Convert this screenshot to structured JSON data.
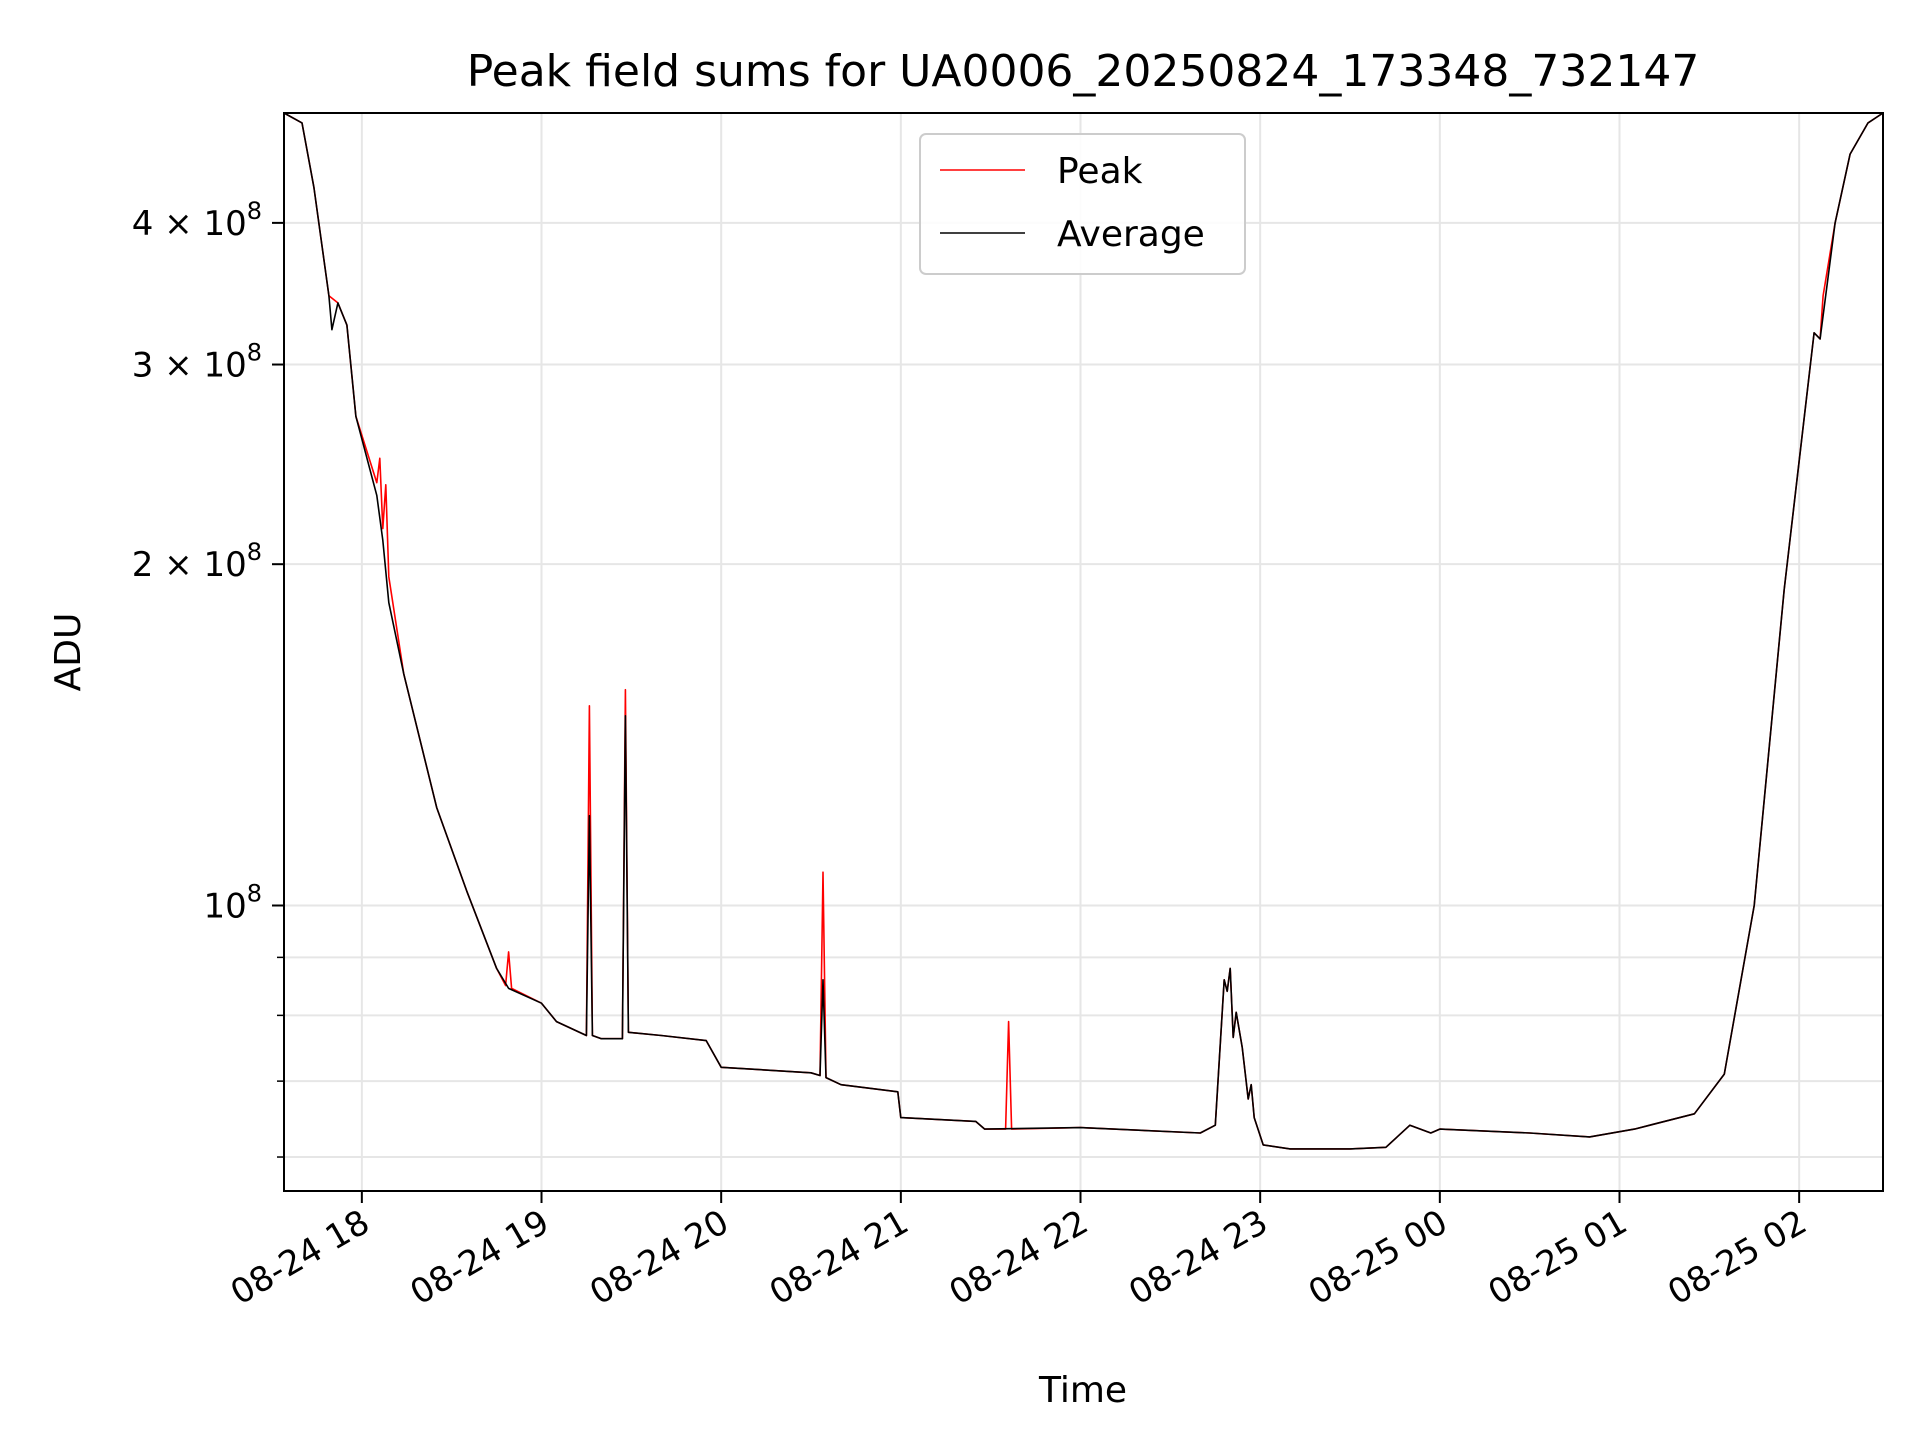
{
  "chart_data": {
    "type": "line",
    "title": "Peak field sums for UA0006_20250824_173348_732147",
    "xlabel": "Time",
    "ylabel": "ADU",
    "y_scale": "log",
    "ylim": [
      56000000,
      500000000
    ],
    "xlim": [
      "2025-08-24 17:34",
      "2025-08-25 02:28"
    ],
    "grid": true,
    "legend": {
      "placement": "top-center",
      "entries": [
        "Peak",
        "Average"
      ]
    },
    "x_ticks": [
      {
        "value": "2025-08-24 18:00",
        "label": "08-24 18"
      },
      {
        "value": "2025-08-24 19:00",
        "label": "08-24 19"
      },
      {
        "value": "2025-08-24 20:00",
        "label": "08-24 20"
      },
      {
        "value": "2025-08-24 21:00",
        "label": "08-24 21"
      },
      {
        "value": "2025-08-24 22:00",
        "label": "08-24 22"
      },
      {
        "value": "2025-08-24 23:00",
        "label": "08-24 23"
      },
      {
        "value": "2025-08-25 00:00",
        "label": "08-25 00"
      },
      {
        "value": "2025-08-25 01:00",
        "label": "08-25 01"
      },
      {
        "value": "2025-08-25 02:00",
        "label": "08-25 02"
      }
    ],
    "y_ticks_major": [
      {
        "value": 100000000,
        "base": "10",
        "exp": "8",
        "mult": ""
      },
      {
        "value": 200000000,
        "base": "10",
        "exp": "8",
        "mult": "2 × "
      },
      {
        "value": 300000000,
        "base": "10",
        "exp": "8",
        "mult": "3 × "
      },
      {
        "value": 400000000,
        "base": "10",
        "exp": "8",
        "mult": "4 × "
      }
    ],
    "y_ticks_minor": [
      60000000,
      70000000,
      80000000,
      90000000
    ],
    "series": [
      {
        "name": "Peak",
        "color": "#ff0000",
        "points": [
          [
            "2025-08-24 17:34",
            500000000
          ],
          [
            "2025-08-24 17:40",
            490000000
          ],
          [
            "2025-08-24 17:44",
            430000000
          ],
          [
            "2025-08-24 17:49",
            345000000
          ],
          [
            "2025-08-24 17:52",
            340000000
          ],
          [
            "2025-08-24 17:55",
            325000000
          ],
          [
            "2025-08-24 17:58",
            270000000
          ],
          [
            "2025-08-24 18:05",
            236000000
          ],
          [
            "2025-08-24 18:06",
            248000000
          ],
          [
            "2025-08-24 18:07",
            215000000
          ],
          [
            "2025-08-24 18:08",
            235000000
          ],
          [
            "2025-08-24 18:09",
            195000000
          ],
          [
            "2025-08-24 18:14",
            160000000
          ],
          [
            "2025-08-24 18:25",
            122000000
          ],
          [
            "2025-08-24 18:35",
            103000000
          ],
          [
            "2025-08-24 18:45",
            88000000
          ],
          [
            "2025-08-24 18:48",
            85000000
          ],
          [
            "2025-08-24 18:49",
            91000000
          ],
          [
            "2025-08-24 18:50",
            84500000
          ],
          [
            "2025-08-24 19:00",
            82000000
          ],
          [
            "2025-08-24 19:05",
            79000000
          ],
          [
            "2025-08-24 19:15",
            76800000
          ],
          [
            "2025-08-24 19:16",
            150000000
          ],
          [
            "2025-08-24 19:17",
            76800000
          ],
          [
            "2025-08-24 19:20",
            76300000
          ],
          [
            "2025-08-24 19:27",
            76300000
          ],
          [
            "2025-08-24 19:28",
            155000000
          ],
          [
            "2025-08-24 19:29",
            77300000
          ],
          [
            "2025-08-24 19:40",
            76800000
          ],
          [
            "2025-08-24 19:55",
            76000000
          ],
          [
            "2025-08-24 20:00",
            72000000
          ],
          [
            "2025-08-24 20:30",
            71200000
          ],
          [
            "2025-08-24 20:33",
            70800000
          ],
          [
            "2025-08-24 20:34",
            107000000
          ],
          [
            "2025-08-24 20:35",
            70500000
          ],
          [
            "2025-08-24 20:40",
            69500000
          ],
          [
            "2025-08-24 20:59",
            68500000
          ],
          [
            "2025-08-24 21:00",
            65000000
          ],
          [
            "2025-08-24 21:25",
            64500000
          ],
          [
            "2025-08-24 21:28",
            63500000
          ],
          [
            "2025-08-24 21:35",
            63500000
          ],
          [
            "2025-08-24 21:36",
            79000000
          ],
          [
            "2025-08-24 21:37",
            63500000
          ],
          [
            "2025-08-24 22:00",
            63700000
          ],
          [
            "2025-08-24 22:40",
            63000000
          ],
          [
            "2025-08-24 22:45",
            64000000
          ],
          [
            "2025-08-24 22:48",
            86000000
          ],
          [
            "2025-08-24 22:49",
            84000000
          ],
          [
            "2025-08-24 22:50",
            88000000
          ],
          [
            "2025-08-24 22:51",
            76500000
          ],
          [
            "2025-08-24 22:52",
            80500000
          ],
          [
            "2025-08-24 22:54",
            75000000
          ],
          [
            "2025-08-24 22:56",
            67500000
          ],
          [
            "2025-08-24 22:57",
            69500000
          ],
          [
            "2025-08-24 22:58",
            65000000
          ],
          [
            "2025-08-24 23:01",
            61500000
          ],
          [
            "2025-08-24 23:10",
            61000000
          ],
          [
            "2025-08-24 23:30",
            61000000
          ],
          [
            "2025-08-24 23:42",
            61200000
          ],
          [
            "2025-08-24 23:50",
            64000000
          ],
          [
            "2025-08-24 23:57",
            63000000
          ],
          [
            "2025-08-25 00:00",
            63500000
          ],
          [
            "2025-08-25 00:30",
            63000000
          ],
          [
            "2025-08-25 00:50",
            62500000
          ],
          [
            "2025-08-25 01:05",
            63500000
          ],
          [
            "2025-08-25 01:25",
            65500000
          ],
          [
            "2025-08-25 01:35",
            71000000
          ],
          [
            "2025-08-25 01:45",
            100000000
          ],
          [
            "2025-08-25 01:55",
            190000000
          ],
          [
            "2025-08-25 02:05",
            320000000
          ],
          [
            "2025-08-25 02:07",
            316000000
          ],
          [
            "2025-08-25 02:08",
            345000000
          ],
          [
            "2025-08-25 02:12",
            400000000
          ],
          [
            "2025-08-25 02:17",
            460000000
          ],
          [
            "2025-08-25 02:23",
            490000000
          ],
          [
            "2025-08-25 02:28",
            500000000
          ]
        ]
      },
      {
        "name": "Average",
        "color": "#000000",
        "points": [
          [
            "2025-08-24 17:34",
            500000000
          ],
          [
            "2025-08-24 17:40",
            490000000
          ],
          [
            "2025-08-24 17:44",
            430000000
          ],
          [
            "2025-08-24 17:49",
            345000000
          ],
          [
            "2025-08-24 17:50",
            322000000
          ],
          [
            "2025-08-24 17:52",
            340000000
          ],
          [
            "2025-08-24 17:55",
            325000000
          ],
          [
            "2025-08-24 17:58",
            270000000
          ],
          [
            "2025-08-24 18:05",
            230000000
          ],
          [
            "2025-08-24 18:07",
            210000000
          ],
          [
            "2025-08-24 18:09",
            185000000
          ],
          [
            "2025-08-24 18:14",
            160000000
          ],
          [
            "2025-08-24 18:25",
            122000000
          ],
          [
            "2025-08-24 18:35",
            103000000
          ],
          [
            "2025-08-24 18:45",
            88000000
          ],
          [
            "2025-08-24 18:49",
            84500000
          ],
          [
            "2025-08-24 19:00",
            82000000
          ],
          [
            "2025-08-24 19:05",
            79000000
          ],
          [
            "2025-08-24 19:15",
            76800000
          ],
          [
            "2025-08-24 19:16",
            120000000
          ],
          [
            "2025-08-24 19:17",
            76800000
          ],
          [
            "2025-08-24 19:20",
            76300000
          ],
          [
            "2025-08-24 19:27",
            76300000
          ],
          [
            "2025-08-24 19:28",
            147000000
          ],
          [
            "2025-08-24 19:29",
            77300000
          ],
          [
            "2025-08-24 19:40",
            76800000
          ],
          [
            "2025-08-24 19:55",
            76000000
          ],
          [
            "2025-08-24 20:00",
            72000000
          ],
          [
            "2025-08-24 20:30",
            71200000
          ],
          [
            "2025-08-24 20:33",
            70800000
          ],
          [
            "2025-08-24 20:34",
            86000000
          ],
          [
            "2025-08-24 20:35",
            70500000
          ],
          [
            "2025-08-24 20:40",
            69500000
          ],
          [
            "2025-08-24 20:59",
            68500000
          ],
          [
            "2025-08-24 21:00",
            65000000
          ],
          [
            "2025-08-24 21:25",
            64500000
          ],
          [
            "2025-08-24 21:28",
            63500000
          ],
          [
            "2025-08-24 22:00",
            63700000
          ],
          [
            "2025-08-24 22:40",
            63000000
          ],
          [
            "2025-08-24 22:45",
            64000000
          ],
          [
            "2025-08-24 22:48",
            86000000
          ],
          [
            "2025-08-24 22:49",
            84000000
          ],
          [
            "2025-08-24 22:50",
            88000000
          ],
          [
            "2025-08-24 22:51",
            76500000
          ],
          [
            "2025-08-24 22:52",
            80500000
          ],
          [
            "2025-08-24 22:54",
            75000000
          ],
          [
            "2025-08-24 22:56",
            67500000
          ],
          [
            "2025-08-24 22:57",
            69500000
          ],
          [
            "2025-08-24 22:58",
            65000000
          ],
          [
            "2025-08-24 23:01",
            61500000
          ],
          [
            "2025-08-24 23:10",
            61000000
          ],
          [
            "2025-08-24 23:30",
            61000000
          ],
          [
            "2025-08-24 23:42",
            61200000
          ],
          [
            "2025-08-24 23:50",
            64000000
          ],
          [
            "2025-08-24 23:57",
            63000000
          ],
          [
            "2025-08-25 00:00",
            63500000
          ],
          [
            "2025-08-25 00:30",
            63000000
          ],
          [
            "2025-08-25 00:50",
            62500000
          ],
          [
            "2025-08-25 01:05",
            63500000
          ],
          [
            "2025-08-25 01:25",
            65500000
          ],
          [
            "2025-08-25 01:35",
            71000000
          ],
          [
            "2025-08-25 01:45",
            100000000
          ],
          [
            "2025-08-25 01:55",
            190000000
          ],
          [
            "2025-08-25 02:05",
            320000000
          ],
          [
            "2025-08-25 02:07",
            316000000
          ],
          [
            "2025-08-25 02:12",
            400000000
          ],
          [
            "2025-08-25 02:17",
            460000000
          ],
          [
            "2025-08-25 02:23",
            490000000
          ],
          [
            "2025-08-25 02:28",
            500000000
          ]
        ]
      }
    ]
  }
}
